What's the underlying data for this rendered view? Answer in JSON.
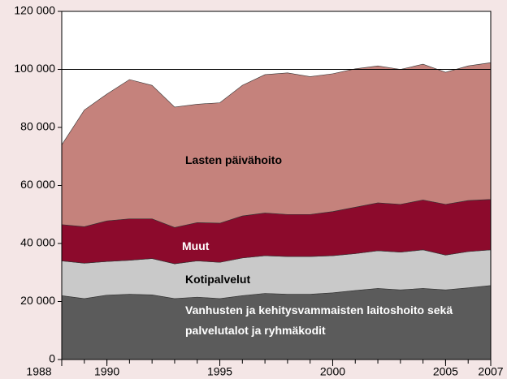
{
  "chart_data": {
    "type": "stacked_area",
    "x": [
      1988,
      1989,
      1990,
      1991,
      1992,
      1993,
      1994,
      1995,
      1996,
      1997,
      1998,
      1999,
      2000,
      2001,
      2002,
      2003,
      2004,
      2005,
      2006,
      2007
    ],
    "series": [
      {
        "name": "Vanhusten ja kehitysvammaisten laitoshoito sekä palvelutalot ja ryhmäkodit",
        "color": "#5b5b5b",
        "values": [
          22000,
          21000,
          22200,
          22500,
          22300,
          21000,
          21500,
          21000,
          22000,
          22800,
          22500,
          22500,
          23000,
          23800,
          24500,
          24000,
          24500,
          24000,
          24700,
          25500
        ]
      },
      {
        "name": "Kotipalvelut",
        "color": "#c9c9c9",
        "values": [
          12000,
          12200,
          11600,
          11700,
          12500,
          12000,
          12500,
          12500,
          13000,
          13000,
          13000,
          13000,
          12800,
          12700,
          13000,
          13000,
          13300,
          12000,
          12500,
          12300
        ]
      },
      {
        "name": "Muut",
        "color": "#8c0a2c",
        "values": [
          12500,
          12600,
          14000,
          14300,
          13700,
          12500,
          13200,
          13500,
          14500,
          14700,
          14500,
          14500,
          15200,
          16000,
          16500,
          16500,
          17200,
          17500,
          17600,
          17400
        ]
      },
      {
        "name": "Lasten päivähoito",
        "color": "#c5827c",
        "values": [
          27500,
          40200,
          43700,
          48000,
          46000,
          41500,
          40800,
          41500,
          45000,
          47700,
          48800,
          47500,
          47500,
          47700,
          47200,
          46500,
          46800,
          45500,
          46400,
          47100
        ]
      }
    ],
    "xlim": [
      1988,
      2007
    ],
    "xticks": [
      1988,
      1990,
      1995,
      2000,
      2005,
      2007
    ],
    "ylim": [
      0,
      120000
    ],
    "yticks": [
      0,
      {
        "value": 20000,
        "label": "20 000"
      },
      {
        "value": 40000,
        "label": "40 000"
      },
      {
        "value": 60000,
        "label": "60 000"
      },
      {
        "value": 80000,
        "label": "80 000"
      },
      {
        "value": 100000,
        "label": "100 000"
      },
      {
        "value": 120000,
        "label": "120 000"
      }
    ],
    "grid_lines": [
      100000
    ]
  }
}
